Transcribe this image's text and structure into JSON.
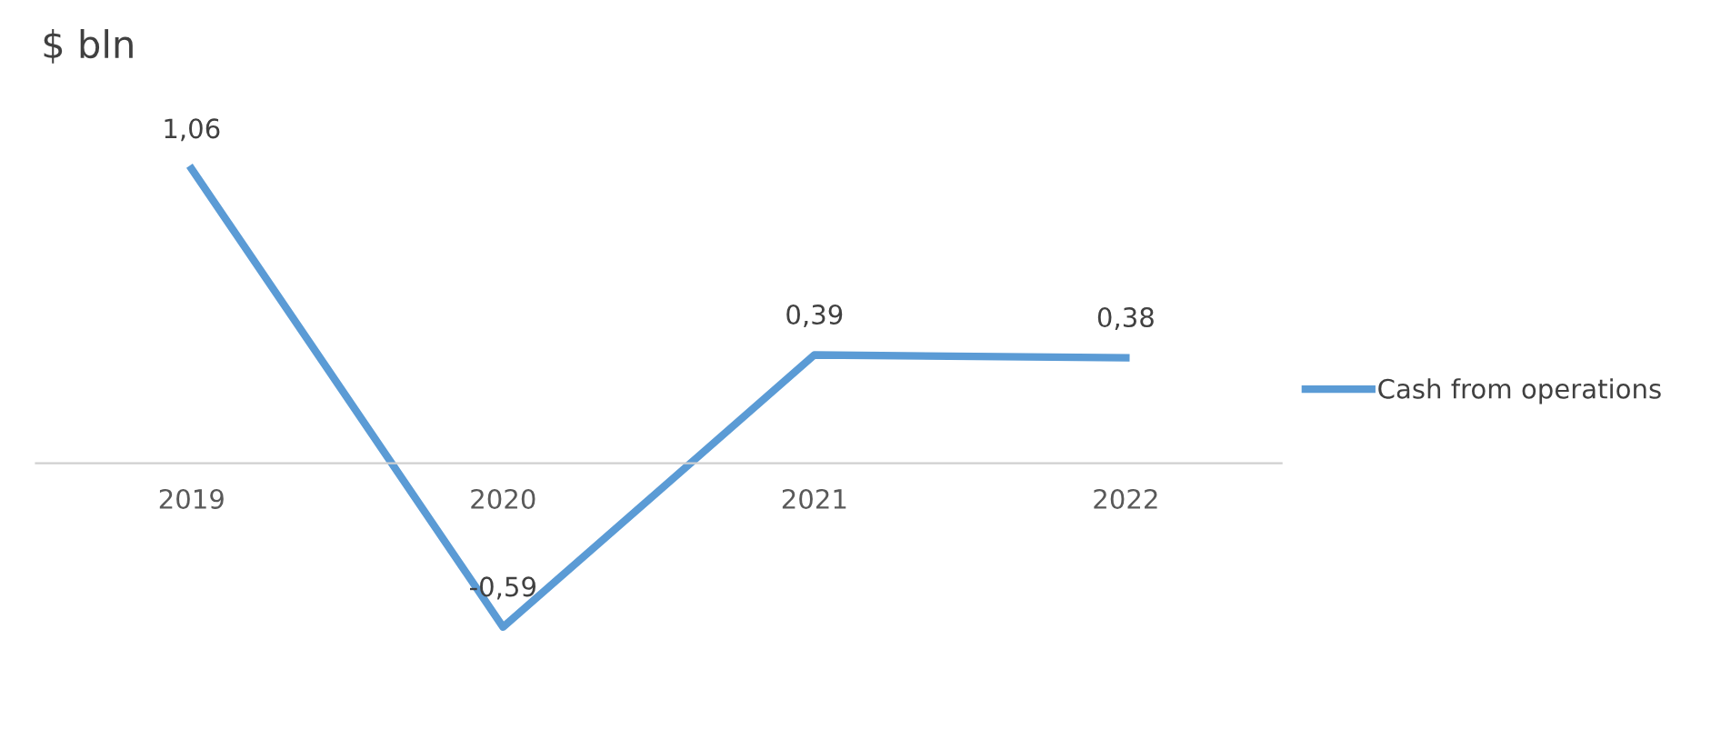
{
  "chart_data": {
    "type": "line",
    "ylabel": "$ bln",
    "categories": [
      "2019",
      "2020",
      "2021",
      "2022"
    ],
    "series": [
      {
        "name": "Cash from operations",
        "color": "#5b9bd5",
        "values": [
          1.06,
          -0.59,
          0.39,
          0.38
        ],
        "value_labels": [
          "1,06",
          "-0,59",
          "0,39",
          "0,38"
        ]
      }
    ],
    "legend": "right",
    "grid": false,
    "marker": "none",
    "line_style": "solid"
  }
}
